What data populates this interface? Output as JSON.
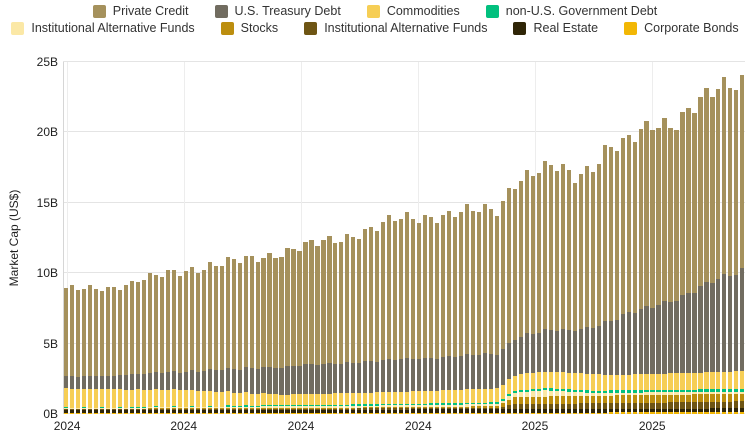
{
  "legend": {
    "rows": [
      [
        {
          "label": "Private Credit",
          "color": "#A5915C"
        },
        {
          "label": "U.S. Treasury Debt",
          "color": "#716C60"
        },
        {
          "label": "Commodities",
          "color": "#F6CE55"
        },
        {
          "label": "non-U.S. Government Debt",
          "color": "#02C07E"
        }
      ],
      [
        {
          "label": "Institutional Alternative Funds",
          "color": "#FBE8A6"
        },
        {
          "label": "Stocks",
          "color": "#BC8E0F"
        },
        {
          "label": "Institutional Alternative Funds",
          "color": "#6E5514"
        },
        {
          "label": "Real Estate",
          "color": "#2F2507"
        },
        {
          "label": "Corporate Bonds",
          "color": "#F2B705"
        }
      ]
    ]
  },
  "chart_data": {
    "type": "bar",
    "subtype": "stacked-dense-time-series",
    "title": "",
    "xlabel": "",
    "ylabel": "Market Cap (US$)",
    "unit": "billions USD",
    "ylim": [
      0,
      25
    ],
    "grid": true,
    "legend_position": "top",
    "bar_count": 114,
    "y_ticks": [
      {
        "label": "0B",
        "value": 0
      },
      {
        "label": "5B",
        "value": 5
      },
      {
        "label": "10B",
        "value": 10
      },
      {
        "label": "15B",
        "value": 15
      },
      {
        "label": "20B",
        "value": 20
      },
      {
        "label": "25B",
        "value": 25
      }
    ],
    "x_ticks": [
      {
        "label": "2024",
        "pos": 0.006
      },
      {
        "label": "2024",
        "pos": 0.177
      },
      {
        "label": "2024",
        "pos": 0.349
      },
      {
        "label": "2024",
        "pos": 0.521
      },
      {
        "label": "2025",
        "pos": 0.692
      },
      {
        "label": "2025",
        "pos": 0.864
      }
    ],
    "stack_order": "bottom_to_top",
    "series": [
      {
        "name": "Corporate Bonds",
        "color": "#F2B705",
        "keyframes": [
          [
            0,
            0.08
          ],
          [
            0.6,
            0.09
          ],
          [
            0.68,
            0.1
          ],
          [
            1,
            0.12
          ]
        ]
      },
      {
        "name": "Real Estate",
        "color": "#2F2507",
        "keyframes": [
          [
            0,
            0.22
          ],
          [
            0.49,
            0.23
          ],
          [
            0.68,
            0.25
          ],
          [
            1,
            0.28
          ]
        ]
      },
      {
        "name": "Institutional Alternative Funds",
        "color": "#6E5514",
        "keyframes": [
          [
            0,
            0.05
          ],
          [
            0.32,
            0.07
          ],
          [
            0.49,
            0.08
          ],
          [
            0.64,
            0.1
          ],
          [
            0.66,
            0.35
          ],
          [
            0.73,
            0.38
          ],
          [
            0.82,
            0.4
          ],
          [
            0.92,
            0.45
          ],
          [
            1,
            0.5
          ]
        ]
      },
      {
        "name": "Stocks",
        "color": "#BC8E0F",
        "keyframes": [
          [
            0,
            0.02
          ],
          [
            0.32,
            0.05
          ],
          [
            0.49,
            0.08
          ],
          [
            0.64,
            0.12
          ],
          [
            0.66,
            0.5
          ],
          [
            0.73,
            0.52
          ],
          [
            0.82,
            0.55
          ],
          [
            1,
            0.55
          ]
        ]
      },
      {
        "name": "Institutional Alternative Funds",
        "color": "#FBE8A6",
        "keyframes": [
          [
            0,
            0.05
          ],
          [
            0.17,
            0.08
          ],
          [
            0.32,
            0.12
          ],
          [
            0.49,
            0.14
          ],
          [
            0.64,
            0.15
          ],
          [
            0.66,
            0.3
          ],
          [
            0.71,
            0.45
          ],
          [
            0.75,
            0.3
          ],
          [
            0.78,
            0.2
          ],
          [
            0.82,
            0.2
          ],
          [
            0.92,
            0.16
          ],
          [
            1,
            0.15
          ]
        ]
      },
      {
        "name": "non-U.S. Government Debt",
        "color": "#02C07E",
        "keyframes": [
          [
            0,
            0.03
          ],
          [
            0.17,
            0.05
          ],
          [
            0.32,
            0.07
          ],
          [
            0.49,
            0.1
          ],
          [
            0.64,
            0.12
          ],
          [
            0.68,
            0.15
          ],
          [
            0.82,
            0.17
          ],
          [
            1,
            0.2
          ]
        ]
      },
      {
        "name": "Commodities",
        "color": "#F6CE55",
        "keyframes": [
          [
            0,
            1.35
          ],
          [
            0.17,
            1.2
          ],
          [
            0.32,
            0.75
          ],
          [
            0.49,
            0.85
          ],
          [
            0.64,
            1.0
          ],
          [
            0.68,
            1.15
          ],
          [
            0.75,
            1.2
          ],
          [
            0.82,
            1.1
          ],
          [
            1,
            1.25
          ]
        ]
      },
      {
        "name": "U.S. Treasury Debt",
        "color": "#716C60",
        "keyframes": [
          [
            0,
            0.85
          ],
          [
            0.08,
            1.0
          ],
          [
            0.17,
            1.3
          ],
          [
            0.32,
            2.0
          ],
          [
            0.49,
            2.3
          ],
          [
            0.64,
            2.45
          ],
          [
            0.68,
            2.8
          ],
          [
            0.75,
            3.0
          ],
          [
            0.82,
            4.1
          ],
          [
            0.9,
            5.3
          ],
          [
            1,
            7.2
          ]
        ]
      },
      {
        "name": "Private Credit",
        "color": "#A5915C",
        "keyframes": [
          [
            0,
            6.15
          ],
          [
            0.08,
            6.34
          ],
          [
            0.17,
            7.19
          ],
          [
            0.25,
            7.6
          ],
          [
            0.32,
            8.14
          ],
          [
            0.4,
            8.8
          ],
          [
            0.45,
            9.4
          ],
          [
            0.49,
            9.94
          ],
          [
            0.55,
            10.1
          ],
          [
            0.6,
            10.2
          ],
          [
            0.64,
            10.23
          ],
          [
            0.66,
            11.2
          ],
          [
            0.71,
            11.5
          ],
          [
            0.73,
            11.55
          ],
          [
            0.75,
            10.85
          ],
          [
            0.78,
            11.5
          ],
          [
            0.8,
            12.5
          ],
          [
            0.82,
            12.12
          ],
          [
            0.84,
            12.3
          ],
          [
            0.87,
            12.94
          ],
          [
            0.9,
            12.6
          ],
          [
            0.92,
            13.07
          ],
          [
            0.95,
            13.3
          ],
          [
            1,
            13.55
          ]
        ]
      }
    ],
    "render_hints": {
      "jitter": {
        "series": [
          "Private Credit",
          "U.S. Treasury Debt"
        ],
        "amp1": 0.03,
        "freq1": 1.9,
        "amp2": 0.018,
        "freq2": 0.47
      },
      "sporadic": {
        "series": "non-U.S. Government Debt",
        "until_t": 0.3,
        "period": 3,
        "hi": 1.7,
        "lo": 0.35
      }
    }
  }
}
